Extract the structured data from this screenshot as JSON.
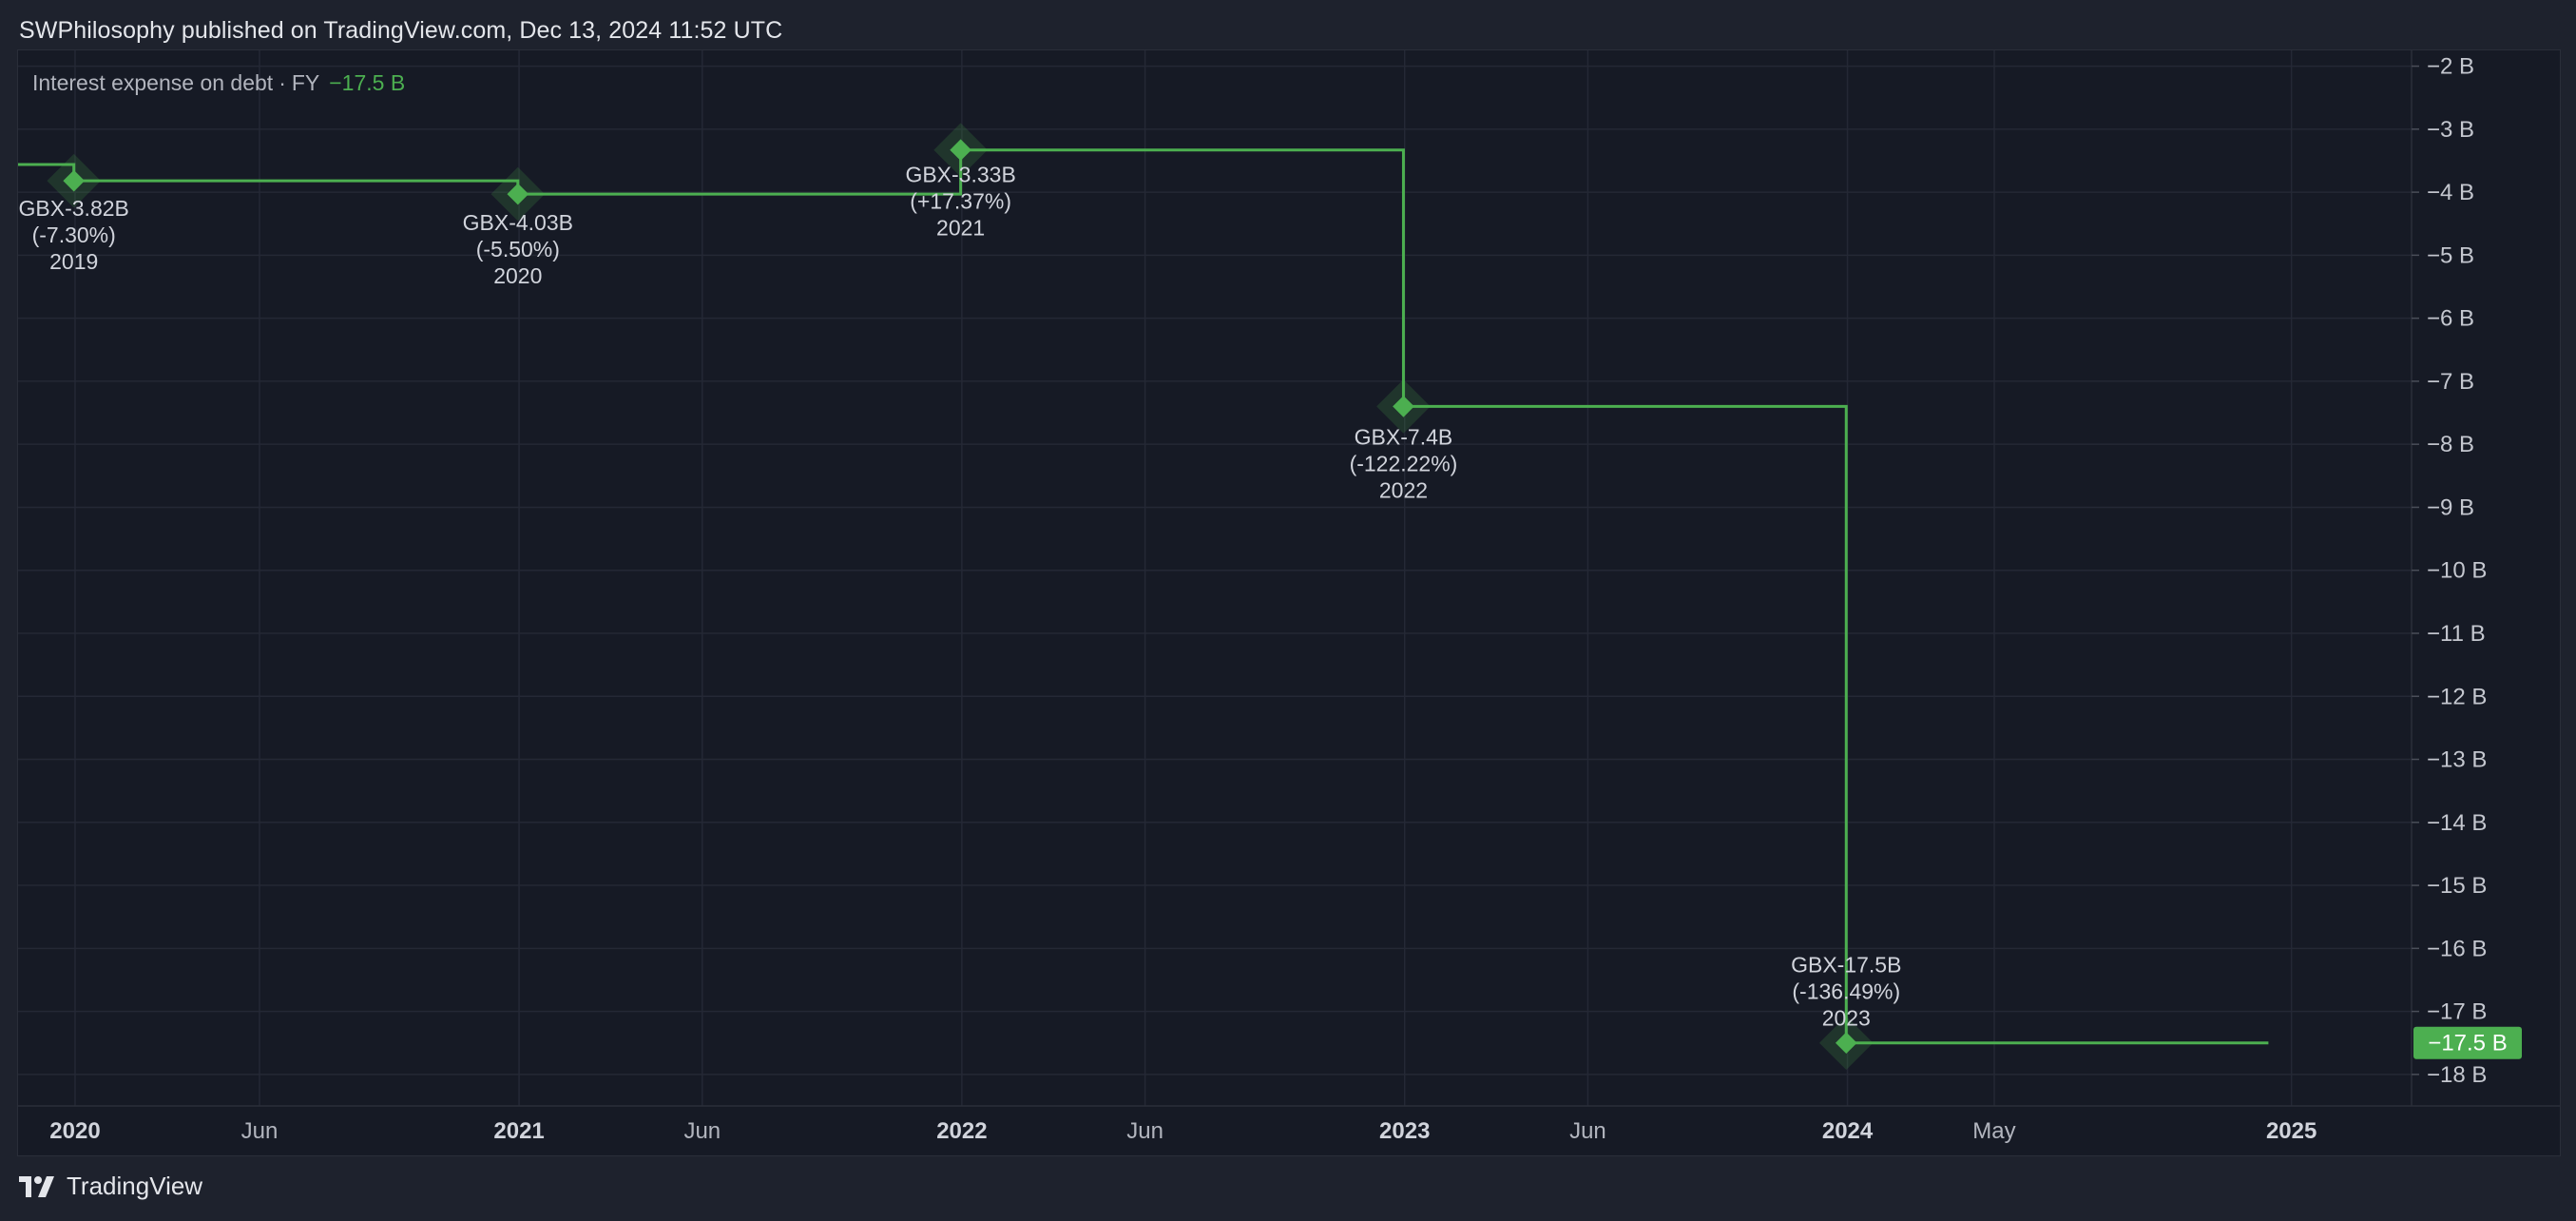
{
  "header": {
    "text": "SWPhilosophy published on TradingView.com, Dec 13, 2024 11:52 UTC"
  },
  "legend": {
    "title": "Interest expense on debt",
    "period": "FY",
    "value": "−17.5 B"
  },
  "footer": {
    "brand": "TradingView"
  },
  "colors": {
    "line": "#4caf50",
    "background": "#161a25",
    "grid": "#242835",
    "text": "#d1d4dc",
    "badge": "#4caf50"
  },
  "chart_data": {
    "type": "line",
    "step": true,
    "series": [
      {
        "unit": "GBX",
        "points": [
          {
            "x": "2019-12-31",
            "y": -3.82,
            "value_label": "GBX-3.82B",
            "change_label": "(-7.30%)",
            "year_label": "2019"
          },
          {
            "x": "2020-12-31",
            "y": -4.03,
            "value_label": "GBX-4.03B",
            "change_label": "(-5.50%)",
            "year_label": "2020"
          },
          {
            "x": "2021-12-31",
            "y": -3.33,
            "value_label": "GBX-3.33B",
            "change_label": "(+17.37%)",
            "year_label": "2021"
          },
          {
            "x": "2022-12-31",
            "y": -7.4,
            "value_label": "GBX-7.4B",
            "change_label": "(-122.22%)",
            "year_label": "2022"
          },
          {
            "x": "2023-12-31",
            "y": -17.5,
            "value_label": "GBX-17.5B",
            "change_label": "(-136.49%)",
            "year_label": "2023"
          }
        ]
      }
    ],
    "x_ticks": [
      {
        "date": "2020-01-01",
        "label": "2020",
        "bold": true
      },
      {
        "date": "2020-06-01",
        "label": "Jun",
        "bold": false
      },
      {
        "date": "2021-01-01",
        "label": "2021",
        "bold": true
      },
      {
        "date": "2021-06-01",
        "label": "Jun",
        "bold": false
      },
      {
        "date": "2022-01-01",
        "label": "2022",
        "bold": true
      },
      {
        "date": "2022-06-01",
        "label": "Jun",
        "bold": false
      },
      {
        "date": "2023-01-01",
        "label": "2023",
        "bold": true
      },
      {
        "date": "2023-06-01",
        "label": "Jun",
        "bold": false
      },
      {
        "date": "2024-01-01",
        "label": "2024",
        "bold": true
      },
      {
        "date": "2024-05-01",
        "label": "May",
        "bold": false
      },
      {
        "date": "2025-01-01",
        "label": "2025",
        "bold": true
      }
    ],
    "x_range": [
      "2019-11-15",
      "2025-04-10"
    ],
    "line_end": "2024-12-13",
    "y_ticks": [
      {
        "value": -2,
        "label": "−2 B"
      },
      {
        "value": -3,
        "label": "−3 B"
      },
      {
        "value": -4,
        "label": "−4 B"
      },
      {
        "value": -5,
        "label": "−5 B"
      },
      {
        "value": -6,
        "label": "−6 B"
      },
      {
        "value": -7,
        "label": "−7 B"
      },
      {
        "value": -8,
        "label": "−8 B"
      },
      {
        "value": -9,
        "label": "−9 B"
      },
      {
        "value": -10,
        "label": "−10 B"
      },
      {
        "value": -11,
        "label": "−11 B"
      },
      {
        "value": -12,
        "label": "−12 B"
      },
      {
        "value": -13,
        "label": "−13 B"
      },
      {
        "value": -14,
        "label": "−14 B"
      },
      {
        "value": -15,
        "label": "−15 B"
      },
      {
        "value": -16,
        "label": "−16 B"
      },
      {
        "value": -17,
        "label": "−17 B"
      },
      {
        "value": -18,
        "label": "−18 B"
      }
    ],
    "ylim": [
      -18.5,
      -1.75
    ],
    "prior_value": -3.56,
    "last_value_badge": "−17.5 B",
    "grid": true,
    "y_axis_position": "right"
  }
}
